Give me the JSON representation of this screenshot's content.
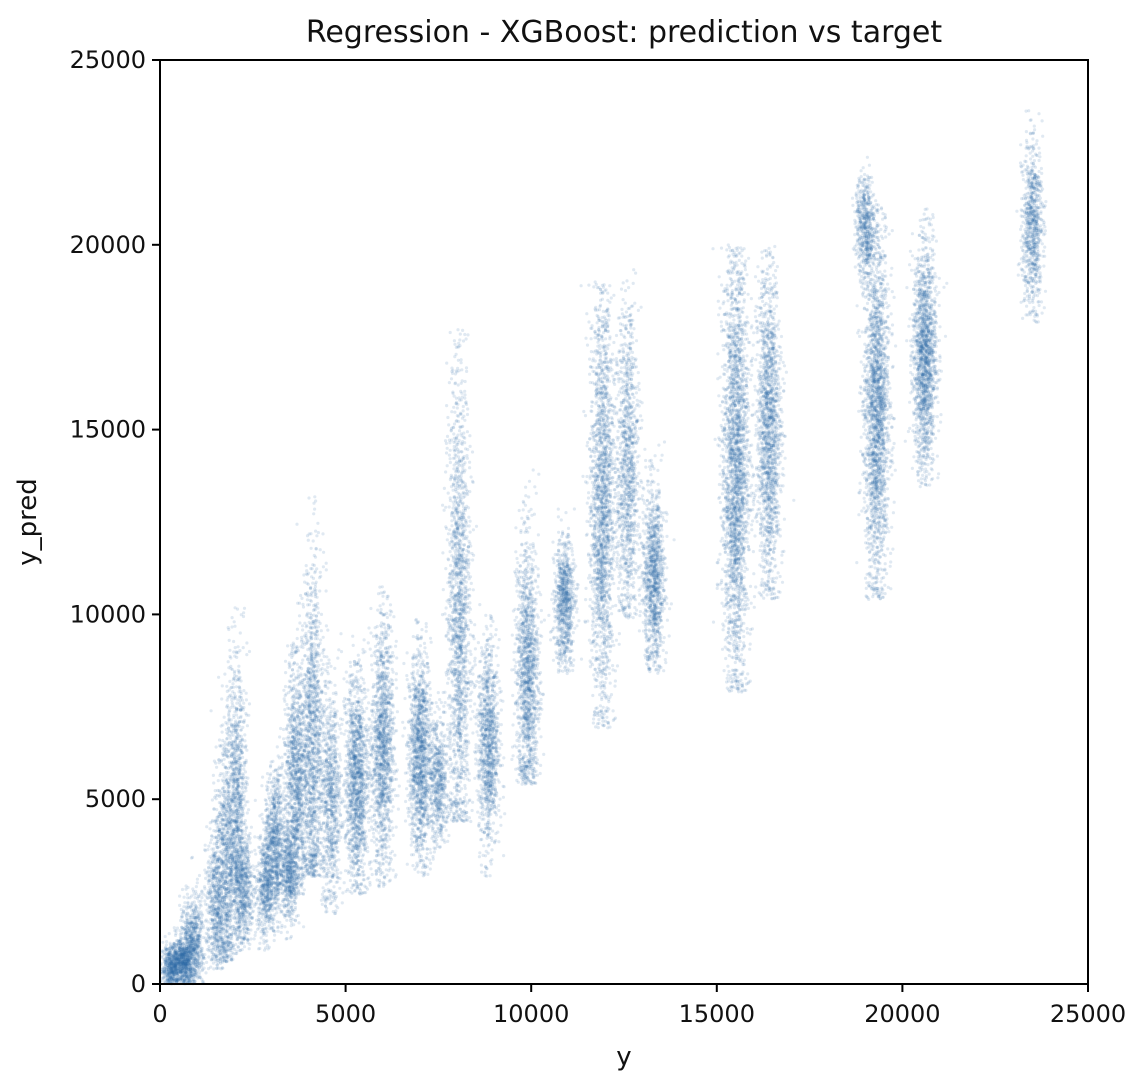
{
  "chart_data": {
    "type": "scatter",
    "title": "Regression - XGBoost: prediction vs target",
    "xlabel": "y",
    "ylabel": "y_pred",
    "xlim": [
      0,
      25000
    ],
    "ylim": [
      0,
      25000
    ],
    "xticks": [
      0,
      5000,
      10000,
      15000,
      20000,
      25000
    ],
    "yticks": [
      0,
      5000,
      10000,
      15000,
      20000,
      25000
    ],
    "grid": false,
    "legend": "none",
    "marker_color": "#2c6aa8",
    "marker_alpha": 0.15,
    "series": [
      {
        "clusters": [
          {
            "x": 300,
            "y_center": 450,
            "y_min": 100,
            "y_max": 1200,
            "weight": 2
          },
          {
            "x": 600,
            "y_center": 600,
            "y_min": 200,
            "y_max": 1400,
            "weight": 2
          },
          {
            "x": 800,
            "y_center": 900,
            "y_min": 300,
            "y_max": 2800,
            "weight": 2
          },
          {
            "x": 1000,
            "y_center": 1200,
            "y_min": 500,
            "y_max": 3000,
            "weight": 1
          },
          {
            "x": 1500,
            "y_center": 2200,
            "y_min": 1000,
            "y_max": 4500,
            "weight": 2
          },
          {
            "x": 1750,
            "y_center": 3200,
            "y_min": 1200,
            "y_max": 7200,
            "weight": 3
          },
          {
            "x": 2050,
            "y_center": 4800,
            "y_min": 1500,
            "y_max": 8800,
            "weight": 4
          },
          {
            "x": 2250,
            "y_center": 2600,
            "y_min": 1500,
            "y_max": 4200,
            "weight": 2
          },
          {
            "x": 2850,
            "y_center": 2600,
            "y_min": 1500,
            "y_max": 4000,
            "weight": 2
          },
          {
            "x": 3100,
            "y_center": 3800,
            "y_min": 2000,
            "y_max": 5500,
            "weight": 3
          },
          {
            "x": 3500,
            "y_center": 3000,
            "y_min": 1800,
            "y_max": 4200,
            "weight": 2
          },
          {
            "x": 3650,
            "y_center": 5500,
            "y_min": 3000,
            "y_max": 8500,
            "weight": 4
          },
          {
            "x": 4100,
            "y_center": 6500,
            "y_min": 3500,
            "y_max": 12000,
            "weight": 5
          },
          {
            "x": 4600,
            "y_center": 5000,
            "y_min": 2500,
            "y_max": 8000,
            "weight": 3
          },
          {
            "x": 5300,
            "y_center": 5500,
            "y_min": 3000,
            "y_max": 8000,
            "weight": 5
          },
          {
            "x": 6000,
            "y_center": 6500,
            "y_min": 3200,
            "y_max": 9300,
            "weight": 5
          },
          {
            "x": 7000,
            "y_center": 6200,
            "y_min": 3500,
            "y_max": 8500,
            "weight": 5
          },
          {
            "x": 7500,
            "y_center": 5500,
            "y_min": 4000,
            "y_max": 7000,
            "weight": 2
          },
          {
            "x": 8050,
            "y_center": 10000,
            "y_min": 5000,
            "y_max": 16500,
            "weight": 6
          },
          {
            "x": 8850,
            "y_center": 6500,
            "y_min": 3500,
            "y_max": 8500,
            "weight": 4
          },
          {
            "x": 9900,
            "y_center": 8500,
            "y_min": 6000,
            "y_max": 12500,
            "weight": 5
          },
          {
            "x": 10900,
            "y_center": 10300,
            "y_min": 9000,
            "y_max": 12000,
            "weight": 3
          },
          {
            "x": 11900,
            "y_center": 13000,
            "y_min": 7500,
            "y_max": 17500,
            "weight": 7
          },
          {
            "x": 12600,
            "y_center": 14000,
            "y_min": 10500,
            "y_max": 18000,
            "weight": 4
          },
          {
            "x": 13300,
            "y_center": 11000,
            "y_min": 9000,
            "y_max": 13500,
            "weight": 4
          },
          {
            "x": 15500,
            "y_center": 14000,
            "y_min": 8500,
            "y_max": 18500,
            "weight": 9
          },
          {
            "x": 16400,
            "y_center": 15000,
            "y_min": 11000,
            "y_max": 18500,
            "weight": 6
          },
          {
            "x": 19300,
            "y_center": 15500,
            "y_min": 11000,
            "y_max": 19500,
            "weight": 8
          },
          {
            "x": 19000,
            "y_center": 20500,
            "y_min": 19000,
            "y_max": 21500,
            "weight": 2
          },
          {
            "x": 20600,
            "y_center": 17000,
            "y_min": 14000,
            "y_max": 19500,
            "weight": 6
          },
          {
            "x": 23500,
            "y_center": 20500,
            "y_min": 18500,
            "y_max": 22500,
            "weight": 3
          }
        ]
      }
    ]
  }
}
